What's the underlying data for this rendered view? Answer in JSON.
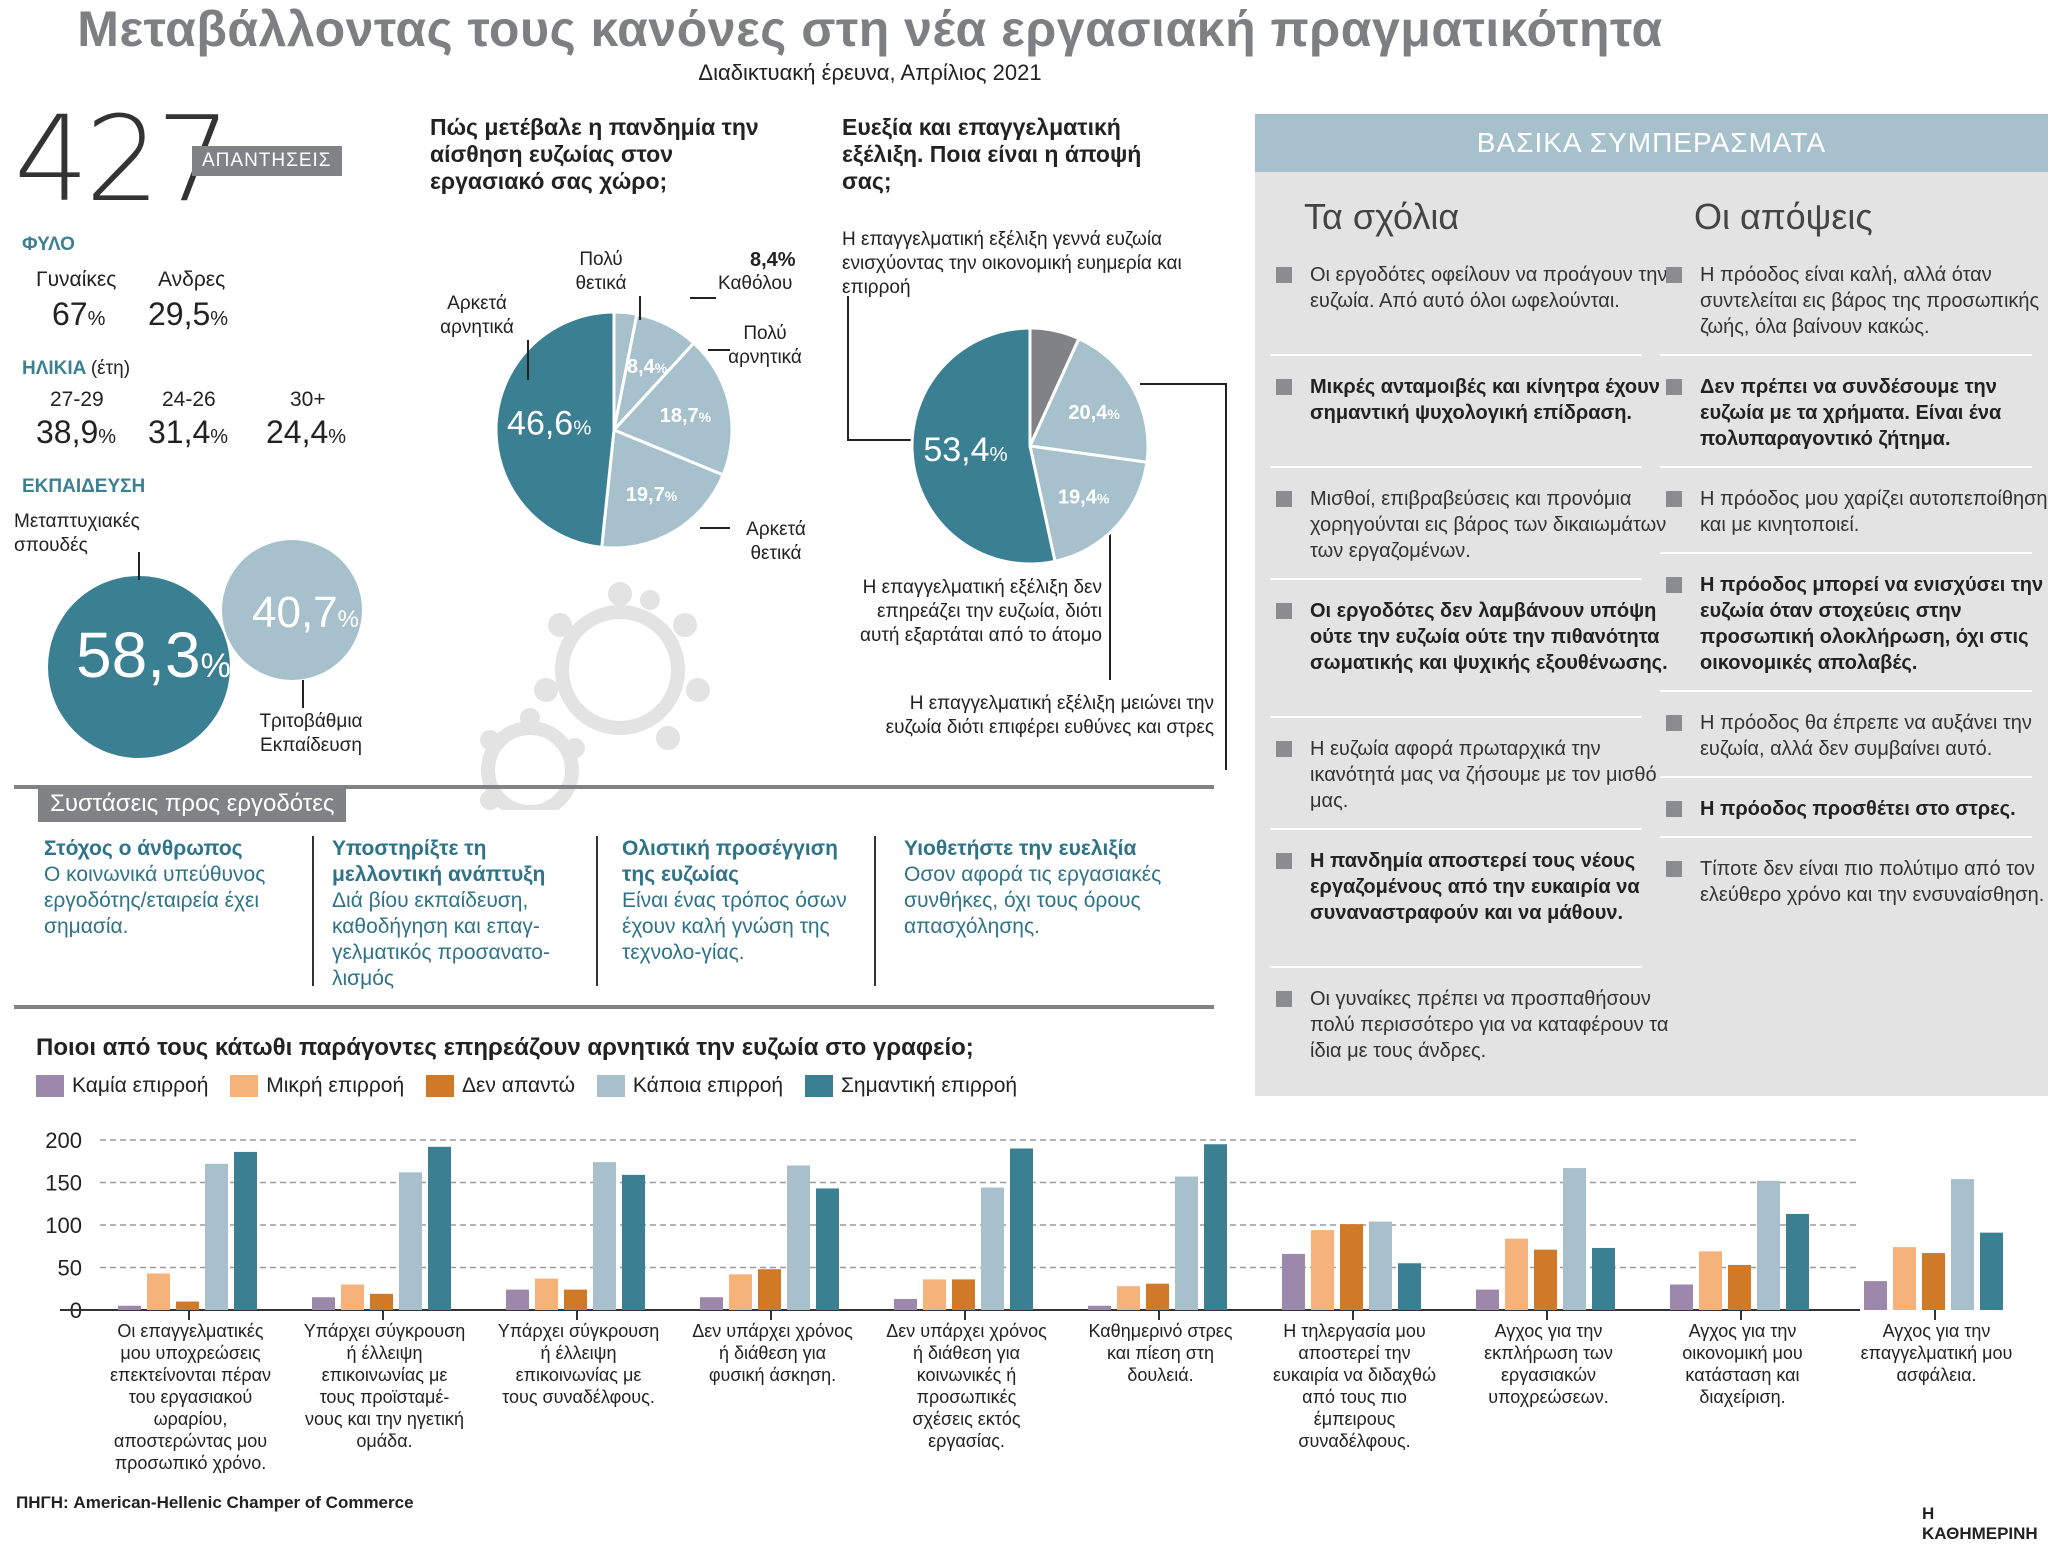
{
  "header": {
    "title": "Μεταβάλλοντας τους κανόνες στη νέα εργασιακή πραγματικότητα",
    "subtitle": "Διαδικτυακή έρευνα, Απρίλιος 2021"
  },
  "demographics": {
    "responses": "427",
    "responses_label": "ΑΠΑΝΤΗΣΕΙΣ",
    "gender_title": "ΦΥΛΟ",
    "gender": [
      {
        "label": "Γυναίκες",
        "value": "67",
        "unit": "%"
      },
      {
        "label": "Ανδρες",
        "value": "29,5",
        "unit": "%"
      }
    ],
    "age_title": "ΗΛΙΚΙΑ",
    "age_unit": "(έτη)",
    "age": [
      {
        "label": "27-29",
        "value": "38,9",
        "unit": "%"
      },
      {
        "label": "24-26",
        "value": "31,4",
        "unit": "%"
      },
      {
        "label": "30+",
        "value": "24,4",
        "unit": "%"
      }
    ],
    "education_title": "ΕΚΠΑΙΔΕΥΣΗ",
    "education": [
      {
        "label": "Μεταπτυχιακές σπουδές",
        "value": "58,3",
        "unit": "%",
        "pct": 58.3
      },
      {
        "label": "Τριτοβάθμια Εκπαίδευση",
        "value": "40,7",
        "unit": "%",
        "pct": 40.7
      }
    ]
  },
  "colors": {
    "teal": "#3b7f93",
    "lightblue": "#a6c1cc",
    "gray": "#808285",
    "purple": "#9c88aa",
    "peach": "#f5b27a",
    "orange": "#d07a28",
    "paleblue": "#a7c0cb",
    "darkteal": "#3b7f93"
  },
  "chart_data": [
    {
      "type": "pie",
      "title": "Πώς μετέβαλε η πανδημία την αίσθηση ευζωίας στον εργασιακό σας χώρο;",
      "slices": [
        {
          "label": "Πολύ θετικά",
          "value": 3.0,
          "display": ""
        },
        {
          "label": "Καθόλου",
          "value": 8.4,
          "display": "8,4"
        },
        {
          "label": "Πολύ αρνητικά",
          "value": 18.7,
          "display": "18,7"
        },
        {
          "label": "Αρκετά θετικά",
          "value": 19.7,
          "display": "19,7"
        },
        {
          "label": "Αρκετά αρνητικά",
          "value": 46.6,
          "display": "46,6"
        }
      ]
    },
    {
      "type": "pie",
      "title": "Ευεξία και επαγγελματική εξέλιξη. Ποια είναι η άποψή σας;",
      "slices": [
        {
          "label": "",
          "value": 6.8,
          "display": ""
        },
        {
          "label": "Η επαγγελματική εξέλιξη μειώνει την ευζωία διότι επιφέρει ευθύνες και στρες",
          "value": 20.4,
          "display": "20,4"
        },
        {
          "label": "Η επαγγελματική εξέλιξη δεν επηρεάζει την ευζωία, διότι αυτή εξαρτάται από το άτομο",
          "value": 19.4,
          "display": "19,4"
        },
        {
          "label": "Η επαγγελματική εξέλιξη γεννά ευζωία ενισχύοντας την οικονομική ευημερία και επιρροή",
          "value": 53.4,
          "display": "53,4"
        }
      ]
    },
    {
      "type": "bar",
      "title": "Ποιοι από τους κάτωθι παράγοντες επηρεάζουν αρνητικά την ευζωία στο γραφείο;",
      "ylim": [
        0,
        200
      ],
      "yticks": [
        0,
        50,
        100,
        150,
        200
      ],
      "series": [
        {
          "name": "Καμία επιρροή",
          "values": [
            5,
            15,
            24,
            15,
            13,
            5,
            66,
            24,
            30,
            34
          ]
        },
        {
          "name": "Μικρή επιρροή",
          "values": [
            43,
            30,
            37,
            42,
            36,
            28,
            94,
            84,
            69,
            74
          ]
        },
        {
          "name": "Δεν απαντώ",
          "values": [
            10,
            19,
            24,
            48,
            36,
            31,
            101,
            71,
            53,
            67
          ]
        },
        {
          "name": "Κάποια επιρροή",
          "values": [
            172,
            162,
            174,
            170,
            144,
            157,
            104,
            167,
            152,
            154
          ]
        },
        {
          "name": "Σημαντική επιρροή",
          "values": [
            186,
            192,
            159,
            143,
            190,
            195,
            55,
            73,
            113,
            91
          ]
        }
      ],
      "categories": [
        "Οι επαγγελματικές μου υποχρεώσεις επεκτείνονται πέραν του εργασιακού ωραρίου, αποστερώντας μου προσωπικό χρόνο.",
        "Υπάρχει σύγκρουση ή έλλειψη επικοινωνίας με τους προϊσταμέ-νους και την ηγετική ομάδα.",
        "Υπάρχει σύγκρουση ή έλλειψη επικοινωνίας με τους συναδέλφους.",
        "Δεν υπάρχει χρόνος ή διάθεση για φυσική άσκηση.",
        "Δεν υπάρχει χρόνος ή διάθεση για κοινωνικές ή προσωπικές σχέσεις εκτός εργασίας.",
        "Καθημερινό στρες και πίεση στη δουλειά.",
        "Η τηλεργασία μου αποστερεί την ευκαιρία να διδαχθώ από τους πιο έμπειρους συναδέλφους.",
        "Αγχος για την εκπλήρωση των εργασιακών υποχρεώσεων.",
        "Αγχος για την οικονομική μου κατάσταση και διαχείριση.",
        "Αγχος για την επαγγελματική μου ασφάλεια."
      ]
    }
  ],
  "pie1_labels": {
    "poly_thetika": "Πολύ θετικά",
    "kathol_pct": "8,4%",
    "katholou": "Καθόλου",
    "poly_arn": "Πολύ αρνητικά",
    "arketa_arn": "Αρκετά αρνητικά",
    "arketa_thet": "Αρκετά θετικά"
  },
  "pie1_title": "Πώς μετέβαλε η πανδημία την αίσθηση ευζωίας στον εργασιακό σας χώρο;",
  "pie2_title": "Ευεξία και επαγγελματική εξέλιξη. Ποια είναι η άποψή σας;",
  "pie2_labels": {
    "a": "Η επαγγελματική εξέλιξη γεννά ευζωία ενισχύοντας την οικονομική ευημερία και επιρροή",
    "b": "Η επαγγελματική εξέλιξη δεν επηρεάζει την ευζωία, διότι αυτή εξαρτάται από το άτομο",
    "c": "Η επαγγελματική εξέλιξη μειώνει την ευζωία διότι επιφέρει ευθύνες και στρες"
  },
  "conclusions": {
    "title": "ΒΑΣΙΚΑ ΣΥΜΠΕΡΑΣΜΑΤΑ",
    "col1_title": "Τα σχόλια",
    "col2_title": "Οι απόψεις",
    "col1": [
      {
        "text": "Οι εργοδότες οφείλουν να προάγουν την ευζωία. Από αυτό όλοι ωφελούνται.",
        "bold": false
      },
      {
        "text": "Μικρές ανταμοιβές και κίνητρα έχουν σημαντική ψυχολογική επίδραση.",
        "bold": true
      },
      {
        "text": "Μισθοί, επιβραβεύσεις και προνόμια χορηγούνται εις βάρος των δικαιωμάτων των εργαζομένων.",
        "bold": false
      },
      {
        "text": "Οι εργοδότες δεν λαμβάνουν υπόψη ούτε την ευζωία ούτε την πιθανότητα σωματικής και ψυχικής εξουθένωσης.",
        "bold": true
      },
      {
        "text": "Η ευζωία αφορά πρωταρχικά την ικανότητά μας να ζήσουμε με τον μισθό μας.",
        "bold": false
      },
      {
        "text": "Η πανδημία αποστερεί τους νέους εργαζομένους από την ευκαιρία να συναναστραφούν και να μάθουν.",
        "bold": true
      },
      {
        "text": "Οι γυναίκες πρέπει να προσπαθήσουν πολύ περισσότερο για να καταφέρουν τα ίδια με τους άνδρες.",
        "bold": false
      }
    ],
    "col2": [
      {
        "text": "Η πρόοδος είναι καλή, αλλά όταν συντελείται εις βάρος της προσωπικής ζωής, όλα βαίνουν κακώς.",
        "bold": false
      },
      {
        "text": "Δεν πρέπει να συνδέσουμε την ευζωία με τα χρήματα. Είναι ένα πολυπαραγοντικό ζήτημα.",
        "bold": true
      },
      {
        "text": "Η πρόοδος μου χαρίζει αυτοπεποίθηση και με κινητοποιεί.",
        "bold": false
      },
      {
        "text": "Η πρόοδος μπορεί να ενισχύσει την ευζωία όταν στοχεύεις στην προσωπική ολοκλήρωση, όχι στις οικονομικές απολαβές.",
        "bold": true
      },
      {
        "text": "Η πρόοδος θα έπρεπε να αυξάνει την ευζωία, αλλά δεν συμβαίνει αυτό.",
        "bold": false
      },
      {
        "text": "Η πρόοδος προσθέτει στο στρες.",
        "bold": true
      },
      {
        "text": "Τίποτε δεν είναι πιο πολύτιμο από τον ελεύθερο χρόνο και την ενσυναίσθηση.",
        "bold": false
      }
    ]
  },
  "recommendations": {
    "tag": "Συστάσεις προς εργοδότες",
    "items": [
      {
        "title": "Στόχος ο άνθρωπος",
        "body": "Ο κοινωνικά υπεύθυνος εργοδότης/εταιρεία έχει σημασία."
      },
      {
        "title": "Υποστηρίξτε τη μελλοντική ανάπτυξη",
        "body": "Διά βίου εκπαίδευση, καθοδήγηση και επαγ-γελματικός προσανατο-λισμός"
      },
      {
        "title": "Ολιστική προσέγγιση της ευζωίας",
        "body": "Είναι ένας τρόπος όσων έχουν καλή γνώση της τεχνολο-γίας."
      },
      {
        "title": "Υιοθετήστε την ευελιξία",
        "body": "Οσον αφορά τις εργασιακές συνθήκες, όχι τους όρους απασχόλησης."
      }
    ]
  },
  "footer": {
    "source": "ΠΗΓΗ: American-Hellenic Champer of Commerce",
    "brand": "Η ΚΑΘΗΜΕΡΙΝΗ"
  }
}
